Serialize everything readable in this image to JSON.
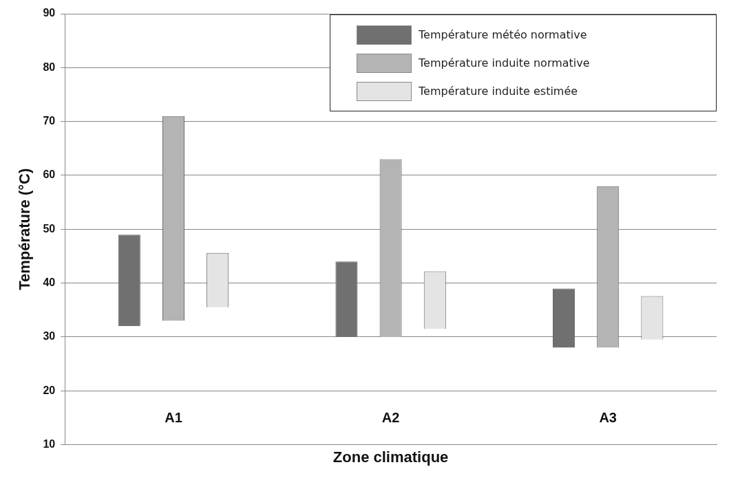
{
  "chart_data": {
    "type": "bar",
    "xlabel": "Zone climatique",
    "ylabel": "Température (°C)",
    "categories": [
      "A1",
      "A2",
      "A3"
    ],
    "series": [
      {
        "name": "Température météo normative",
        "color": "#707070",
        "base": [
          32,
          30,
          28
        ],
        "values": [
          17,
          14,
          11
        ]
      },
      {
        "name": "Température induite normative",
        "color": "#b4b4b4",
        "base": [
          33,
          30,
          28
        ],
        "values": [
          38,
          33,
          30
        ]
      },
      {
        "name": "Température induite estimée",
        "color": "#e4e4e4",
        "base": [
          35.5,
          31.5,
          29.5
        ],
        "values": [
          10.1,
          10.7,
          8.1
        ]
      }
    ],
    "ylim": [
      10,
      90
    ],
    "yticks": [
      10,
      20,
      30,
      40,
      50,
      60,
      70,
      80,
      90
    ],
    "grid": "y",
    "legend": "top right"
  }
}
